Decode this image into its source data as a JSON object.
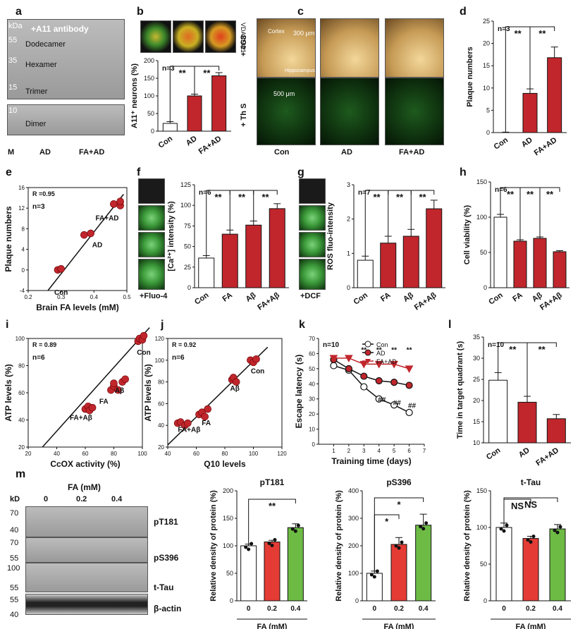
{
  "panel_letters": {
    "a": "a",
    "b": "b",
    "c": "c",
    "d": "d",
    "e": "e",
    "f": "f",
    "g": "g",
    "h": "h",
    "i": "i",
    "j": "j",
    "k": "k",
    "l": "l",
    "m": "m"
  },
  "colors": {
    "con": "#ffffff",
    "treated": "#c0262c",
    "fa02": "#e43c35",
    "fa04": "#6dbb45",
    "sig": "#111111"
  },
  "panel_a": {
    "antibody": "+A11 antibody",
    "kda": "kDa",
    "markers": [
      "55",
      "35",
      "15",
      "10"
    ],
    "bands": [
      "Dodecamer",
      "Hexamer",
      "Trimer",
      "Dimer"
    ],
    "lane_m": "M",
    "groups": [
      "AD",
      "FA+AD"
    ]
  },
  "panel_b": {
    "stain_label": "VDAC/A11"
  },
  "panel_c": {
    "row_labels": [
      "+ 4G8",
      "+ Th S"
    ],
    "cols": [
      "Con",
      "AD",
      "FA+AD"
    ],
    "annot_cortex": "Cortex",
    "annot_hippo": "Hippocampus",
    "scale1": "300 μm",
    "scale2": "500 μm"
  },
  "panel_f": {
    "img_label": "+Fluo-4"
  },
  "panel_g": {
    "img_label": "+DCF"
  },
  "panel_m_blot": {
    "title": "FA (mM)",
    "kd": "kD",
    "lanes": [
      "0",
      "0.2",
      "0.4"
    ],
    "markers": [
      "70",
      "40",
      "70",
      "55",
      "100",
      "55",
      "55",
      "40"
    ],
    "proteins": [
      "pT181",
      "pS396",
      "t-Tau",
      "β-actin"
    ]
  },
  "chart_data": [
    {
      "id": "b",
      "type": "bar",
      "title": "",
      "n_label": "n=3",
      "ylabel": "A11⁺ neurons (%)",
      "categories": [
        "Con",
        "AD",
        "FA+AD"
      ],
      "values": [
        22,
        100,
        157
      ],
      "errors": [
        5,
        5,
        9
      ],
      "ylim": [
        0,
        200
      ],
      "yticks": [
        0,
        50,
        100,
        150,
        200
      ],
      "significance": [
        "**",
        "**"
      ]
    },
    {
      "id": "d",
      "type": "bar",
      "title": "",
      "n_label": "n=3",
      "ylabel": "Plaque numbers",
      "categories": [
        "Con",
        "AD",
        "FA+AD"
      ],
      "values": [
        0,
        8.8,
        16.8
      ],
      "errors": [
        0.1,
        1,
        2.4
      ],
      "ylim": [
        0,
        25
      ],
      "yticks": [
        0,
        5,
        10,
        15,
        20,
        25
      ],
      "significance": [
        "**",
        "**"
      ]
    },
    {
      "id": "e",
      "type": "scatter",
      "title": "",
      "n_label": "n=3",
      "r_label": "R =0.95",
      "xlabel": "Brain FA levels (mM)",
      "ylabel": "Plaque numbers",
      "xlim": [
        0.2,
        0.5
      ],
      "ylim": [
        -4,
        16
      ],
      "xticks": [
        0.2,
        0.3,
        0.4,
        0.5
      ],
      "yticks": [
        -4,
        0,
        4,
        8,
        12,
        16
      ],
      "x": [
        0.29,
        0.3,
        0.37,
        0.39,
        0.46,
        0.48,
        0.48
      ],
      "y": [
        0,
        0.2,
        6.8,
        7.1,
        12.8,
        12.5,
        13.3
      ],
      "group_labels": [
        "Con",
        "AD",
        "FA+AD"
      ],
      "fit": [
        [
          0.26,
          -4
        ],
        [
          0.49,
          14.7
        ]
      ]
    },
    {
      "id": "f",
      "type": "bar",
      "title": "",
      "n_label": "n=6",
      "ylabel": "[Ca²⁺] intensity (%)",
      "categories": [
        "Con",
        "FA",
        "Aβ",
        "FA+Aβ"
      ],
      "values": [
        36,
        65,
        76,
        96
      ],
      "errors": [
        3,
        5,
        5,
        6
      ],
      "ylim": [
        0,
        125
      ],
      "yticks": [
        0,
        25,
        50,
        75,
        100,
        125
      ],
      "significance": [
        "**",
        "**",
        "**"
      ]
    },
    {
      "id": "g",
      "type": "bar",
      "title": "",
      "n_label": "n=7",
      "ylabel": "ROS fluo-intensity",
      "categories": [
        "Con",
        "FA",
        "Aβ",
        "FA+Aβ"
      ],
      "values": [
        0.8,
        1.3,
        1.5,
        2.3
      ],
      "errors": [
        0.12,
        0.2,
        0.2,
        0.25
      ],
      "ylim": [
        0,
        3
      ],
      "yticks": [
        0,
        1,
        2,
        3
      ],
      "significance": [
        "**",
        "**",
        "**"
      ]
    },
    {
      "id": "h",
      "type": "bar",
      "title": "",
      "n_label": "n=6",
      "ylabel": "Cell viability (%)",
      "categories": [
        "Con",
        "FA",
        "Aβ",
        "FA+Aβ"
      ],
      "values": [
        100,
        66,
        70,
        51
      ],
      "errors": [
        4,
        2,
        2,
        1.5
      ],
      "ylim": [
        0,
        150
      ],
      "yticks": [
        0,
        50,
        100,
        150
      ],
      "significance": [
        "**",
        "**",
        "**"
      ]
    },
    {
      "id": "i",
      "type": "scatter",
      "title": "",
      "n_label": "n=6",
      "r_label": "R = 0.89",
      "xlabel": "CcOX activity (%)",
      "ylabel": "ATP levels (%)",
      "xlim": [
        20,
        100
      ],
      "ylim": [
        20,
        100
      ],
      "xticks": [
        20,
        40,
        60,
        80,
        100
      ],
      "yticks": [
        20,
        40,
        60,
        80,
        100
      ],
      "x": [
        60,
        62,
        63,
        65,
        78,
        80,
        80,
        83,
        86,
        88,
        97,
        98,
        100,
        101
      ],
      "y": [
        48,
        50,
        47,
        49,
        62,
        65,
        67,
        62,
        68,
        70,
        98,
        100,
        99,
        102
      ],
      "group_labels": [
        "Con",
        "Aβ",
        "FA",
        "FA+Aβ"
      ],
      "fit": [
        [
          30,
          20
        ],
        [
          105,
          108
        ]
      ]
    },
    {
      "id": "j",
      "type": "scatter",
      "title": "",
      "n_label": "n=6",
      "r_label": "R = 0.92",
      "xlabel": "Q10 levels",
      "ylabel": "ATP levels (%)",
      "xlim": [
        40,
        120
      ],
      "ylim": [
        20,
        120
      ],
      "xticks": [
        40,
        60,
        80,
        100,
        120
      ],
      "yticks": [
        20,
        40,
        60,
        80,
        100,
        120
      ],
      "x": [
        47,
        49,
        52,
        54,
        62,
        64,
        66,
        68,
        85,
        86,
        88,
        98,
        100,
        102
      ],
      "y": [
        42,
        43,
        40,
        42,
        50,
        52,
        48,
        55,
        82,
        84,
        80,
        100,
        98,
        101
      ],
      "group_labels": [
        "Con",
        "Aβ",
        "FA",
        "FA+Aβ"
      ],
      "fit": [
        [
          40,
          22
        ],
        [
          110,
          112
        ]
      ]
    },
    {
      "id": "k",
      "type": "line",
      "title": "",
      "n_label": "n=10",
      "xlabel": "Training time (days)",
      "ylabel": "Escape latency (s)",
      "xlim": [
        0,
        7
      ],
      "ylim": [
        0,
        70
      ],
      "xticks": [
        1,
        2,
        3,
        4,
        5,
        6,
        7
      ],
      "yticks": [
        0,
        10,
        20,
        30,
        40,
        50,
        60,
        70
      ],
      "x": [
        1,
        2,
        3,
        4,
        5,
        6
      ],
      "series": [
        {
          "name": "Con",
          "values": [
            52,
            49,
            38,
            30,
            26,
            21
          ]
        },
        {
          "name": "AD",
          "values": [
            56,
            50,
            45,
            42,
            41,
            39
          ]
        },
        {
          "name": "FA+AD",
          "values": [
            57,
            57,
            53,
            53,
            53,
            50
          ]
        }
      ],
      "sig_top": [
        "**",
        "**",
        "**",
        "**"
      ],
      "sig_hash": [
        "##",
        "##",
        "##"
      ]
    },
    {
      "id": "l",
      "type": "bar",
      "title": "",
      "n_label": "n=10",
      "ylabel": "Time in target quadrant (s)",
      "categories": [
        "Con",
        "AD",
        "FA+AD"
      ],
      "values": [
        24.8,
        19.6,
        15.7
      ],
      "errors": [
        1.8,
        1.4,
        1.0
      ],
      "ylim": [
        10,
        35
      ],
      "yticks": [
        10,
        15,
        20,
        25,
        30,
        35
      ],
      "significance": [
        "**",
        "**"
      ]
    },
    {
      "id": "m1",
      "type": "bar",
      "title": "pT181",
      "xlabel": "FA (mM)",
      "ylabel": "Relative density of protein (%)",
      "categories": [
        "0",
        "0.2",
        "0.4"
      ],
      "values": [
        100,
        107,
        133
      ],
      "errors": [
        3,
        3,
        7
      ],
      "ylim": [
        0,
        200
      ],
      "yticks": [
        0,
        50,
        100,
        150,
        200
      ],
      "significance": [
        "**"
      ]
    },
    {
      "id": "m2",
      "type": "bar",
      "title": "pS396",
      "xlabel": "FA (mM)",
      "ylabel": "Relative density of protein (%)",
      "categories": [
        "0",
        "0.2",
        "0.4"
      ],
      "values": [
        100,
        205,
        275
      ],
      "errors": [
        8,
        25,
        40
      ],
      "ylim": [
        0,
        400
      ],
      "yticks": [
        0,
        100,
        200,
        300,
        400
      ],
      "significance": [
        "*",
        "*"
      ]
    },
    {
      "id": "m3",
      "type": "bar",
      "title": "t-Tau",
      "xlabel": "FA (mM)",
      "ylabel": "Relative density of protein (%)",
      "categories": [
        "0",
        "0.2",
        "0.4"
      ],
      "values": [
        100,
        85,
        98
      ],
      "errors": [
        6,
        3,
        6
      ],
      "ylim": [
        0,
        150
      ],
      "yticks": [
        0,
        50,
        100,
        150
      ],
      "significance": [
        "NS",
        "NS"
      ]
    }
  ]
}
